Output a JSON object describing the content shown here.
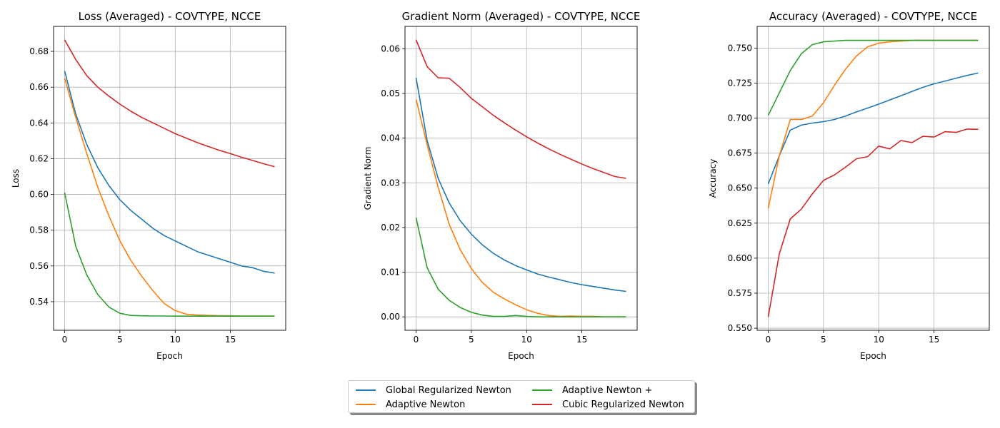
{
  "colors": {
    "Global Regularized Newton": "#1f77b4",
    "Adaptive Newton": "#ff7f0e",
    "Adaptive Newton +": "#2ca02c",
    "Cubic Regularized Newton": "#d62728"
  },
  "legend": {
    "items": [
      {
        "label": "Global Regularized Newton",
        "color": "#1f77b4"
      },
      {
        "label": "Adaptive Newton",
        "color": "#ff7f0e"
      },
      {
        "label": "Adaptive Newton +",
        "color": "#2ca02c"
      },
      {
        "label": "Cubic Regularized Newton",
        "color": "#d62728"
      }
    ]
  },
  "chart_data": [
    {
      "type": "line",
      "title": "Loss (Averaged) - COVTYPE, NCCE",
      "xlabel": "Epoch",
      "ylabel": "Loss",
      "xlim": [
        -1.0,
        20.0
      ],
      "ylim": [
        0.524,
        0.694
      ],
      "xticks": [
        0,
        5,
        10,
        15
      ],
      "xtick_labels": [
        "0",
        "5",
        "10",
        "15"
      ],
      "yticks": [
        0.54,
        0.56,
        0.58,
        0.6,
        0.62,
        0.64,
        0.66,
        0.68
      ],
      "ytick_labels": [
        "0.54",
        "0.56",
        "0.58",
        "0.60",
        "0.62",
        "0.64",
        "0.66",
        "0.68"
      ],
      "grid": true,
      "x": [
        0,
        1,
        2,
        3,
        4,
        5,
        6,
        7,
        8,
        9,
        10,
        11,
        12,
        13,
        14,
        15,
        16,
        17,
        18,
        19
      ],
      "series": [
        {
          "name": "Global Regularized Newton",
          "values": [
            0.669,
            0.645,
            0.628,
            0.615,
            0.605,
            0.597,
            0.591,
            0.586,
            0.581,
            0.577,
            0.574,
            0.571,
            0.568,
            0.566,
            0.564,
            0.562,
            0.56,
            0.559,
            0.557,
            0.556
          ]
        },
        {
          "name": "Adaptive Newton",
          "values": [
            0.665,
            0.643,
            0.623,
            0.604,
            0.588,
            0.574,
            0.563,
            0.554,
            0.546,
            0.539,
            0.535,
            0.533,
            0.5325,
            0.5323,
            0.5322,
            0.5321,
            0.532,
            0.532,
            0.532,
            0.532
          ]
        },
        {
          "name": "Adaptive Newton +",
          "values": [
            0.601,
            0.571,
            0.555,
            0.544,
            0.537,
            0.5335,
            0.5323,
            0.5321,
            0.532,
            0.532,
            0.5319,
            0.5319,
            0.5319,
            0.5319,
            0.5319,
            0.5319,
            0.5319,
            0.5319,
            0.5319,
            0.5319
          ]
        },
        {
          "name": "Cubic Regularized Newton",
          "values": [
            0.6865,
            0.6755,
            0.6665,
            0.66,
            0.655,
            0.6505,
            0.6465,
            0.643,
            0.64,
            0.637,
            0.634,
            0.6315,
            0.629,
            0.6268,
            0.6247,
            0.6228,
            0.6208,
            0.619,
            0.6172,
            0.6155
          ]
        }
      ]
    },
    {
      "type": "line",
      "title": "Gradient Norm (Averaged) - COVTYPE, NCCE",
      "xlabel": "Epoch",
      "ylabel": "Gradient Norm",
      "xlim": [
        -1.0,
        20.0
      ],
      "ylim": [
        -0.003,
        0.065
      ],
      "xticks": [
        0,
        5,
        10,
        15
      ],
      "xtick_labels": [
        "0",
        "5",
        "10",
        "15"
      ],
      "yticks": [
        0.0,
        0.01,
        0.02,
        0.03,
        0.04,
        0.05,
        0.06
      ],
      "ytick_labels": [
        "0.00",
        "0.01",
        "0.02",
        "0.03",
        "0.04",
        "0.05",
        "0.06"
      ],
      "grid": true,
      "x": [
        0,
        1,
        2,
        3,
        4,
        5,
        6,
        7,
        8,
        9,
        10,
        11,
        12,
        13,
        14,
        15,
        16,
        17,
        18,
        19
      ],
      "series": [
        {
          "name": "Global Regularized Newton",
          "values": [
            0.0535,
            0.0395,
            0.031,
            0.0255,
            0.0215,
            0.0185,
            0.0161,
            0.0142,
            0.0127,
            0.0115,
            0.0105,
            0.0096,
            0.0089,
            0.0083,
            0.0077,
            0.0072,
            0.0068,
            0.0064,
            0.006,
            0.0057
          ]
        },
        {
          "name": "Adaptive Newton",
          "values": [
            0.0487,
            0.0385,
            0.029,
            0.0207,
            0.015,
            0.0108,
            0.0077,
            0.0055,
            0.004,
            0.0027,
            0.0016,
            0.0008,
            0.0003,
            0.0001,
            0.0002,
            0.0001,
            0.0001,
            0.0,
            0.0,
            0.0
          ]
        },
        {
          "name": "Adaptive Newton +",
          "values": [
            0.0222,
            0.011,
            0.0062,
            0.0037,
            0.0021,
            0.001,
            0.0004,
            0.0001,
            0.0001,
            0.0003,
            0.0001,
            0.0,
            0.0,
            0.0,
            0.0,
            0.0,
            0.0,
            0.0,
            0.0,
            0.0
          ]
        },
        {
          "name": "Cubic Regularized Newton",
          "values": [
            0.062,
            0.056,
            0.0535,
            0.0534,
            0.0513,
            0.0489,
            0.047,
            0.0451,
            0.0434,
            0.0418,
            0.0403,
            0.0389,
            0.0376,
            0.0364,
            0.0353,
            0.0342,
            0.0332,
            0.0323,
            0.0314,
            0.031
          ]
        }
      ]
    },
    {
      "type": "line",
      "title": "Accuracy (Averaged) - COVTYPE, NCCE",
      "xlabel": "Epoch",
      "ylabel": "Accuracy",
      "xlim": [
        -1.0,
        20.0
      ],
      "ylim": [
        0.5485,
        0.7655
      ],
      "xticks": [
        0,
        5,
        10,
        15
      ],
      "xtick_labels": [
        "0",
        "5",
        "10",
        "15"
      ],
      "yticks": [
        0.55,
        0.575,
        0.6,
        0.625,
        0.65,
        0.675,
        0.7,
        0.725,
        0.75
      ],
      "ytick_labels": [
        "0.550",
        "0.575",
        "0.600",
        "0.625",
        "0.650",
        "0.675",
        "0.700",
        "0.725",
        "0.750"
      ],
      "grid": true,
      "x": [
        0,
        1,
        2,
        3,
        4,
        5,
        6,
        7,
        8,
        9,
        10,
        11,
        12,
        13,
        14,
        15,
        16,
        17,
        18,
        19
      ],
      "series": [
        {
          "name": "Global Regularized Newton",
          "values": [
            0.653,
            0.673,
            0.6915,
            0.695,
            0.6965,
            0.6975,
            0.699,
            0.7015,
            0.7045,
            0.7072,
            0.71,
            0.713,
            0.716,
            0.719,
            0.722,
            0.7245,
            0.7265,
            0.7285,
            0.7305,
            0.7322
          ]
        },
        {
          "name": "Adaptive Newton",
          "values": [
            0.6355,
            0.673,
            0.699,
            0.699,
            0.7015,
            0.711,
            0.7235,
            0.735,
            0.7445,
            0.751,
            0.7535,
            0.7545,
            0.755,
            0.7555,
            0.7555,
            0.7555,
            0.7555,
            0.7555,
            0.7555,
            0.7555
          ]
        },
        {
          "name": "Adaptive Newton +",
          "values": [
            0.702,
            0.718,
            0.734,
            0.746,
            0.7525,
            0.7545,
            0.755,
            0.7555,
            0.7555,
            0.7555,
            0.7555,
            0.7555,
            0.7555,
            0.7555,
            0.7555,
            0.7555,
            0.7555,
            0.7555,
            0.7555,
            0.7555
          ]
        },
        {
          "name": "Cubic Regularized Newton",
          "values": [
            0.558,
            0.603,
            0.628,
            0.635,
            0.646,
            0.6555,
            0.6595,
            0.665,
            0.671,
            0.6725,
            0.68,
            0.678,
            0.684,
            0.6825,
            0.687,
            0.6865,
            0.6903,
            0.6898,
            0.6922,
            0.692
          ]
        }
      ]
    }
  ]
}
